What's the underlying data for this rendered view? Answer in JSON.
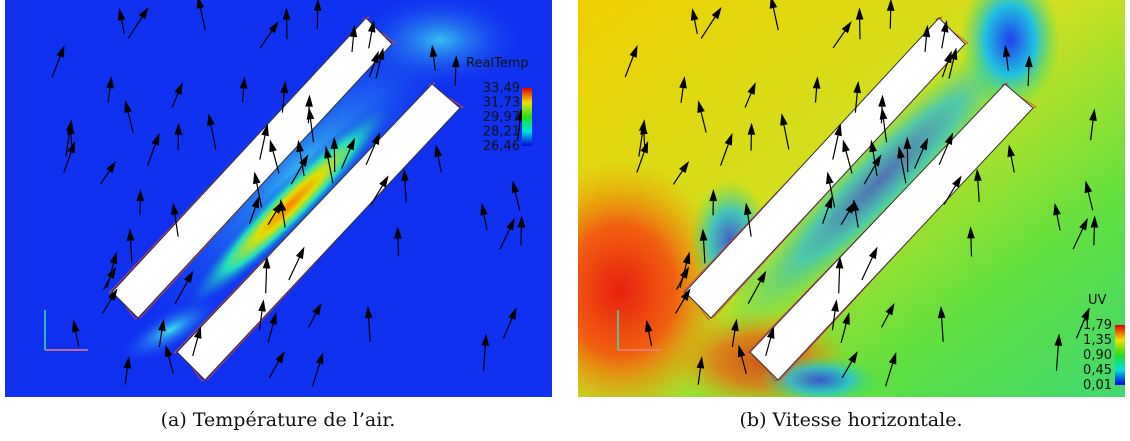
{
  "panels": [
    {
      "caption": "(a) Température de l’air.",
      "colorbar": {
        "title": "RealTemp",
        "labels": [
          "33,49",
          "31,73",
          "29,97",
          "28,21",
          "26,46"
        ]
      }
    },
    {
      "caption": "(b) Vitesse horizontale.",
      "colorbar": {
        "title": "UV",
        "labels": [
          "1,79",
          "1,35",
          "0,90",
          "0,45",
          "0,01"
        ]
      }
    }
  ]
}
